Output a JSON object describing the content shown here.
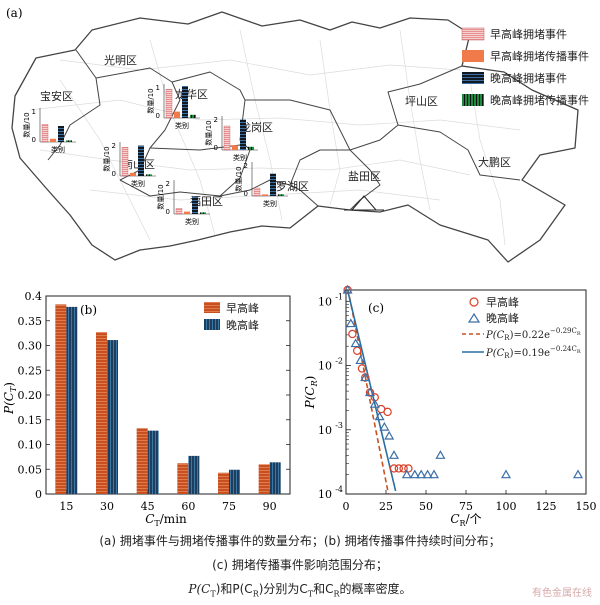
{
  "map": {
    "panel_label": "(a)",
    "districts": [
      "光明区",
      "宝安区",
      "龙华区",
      "龙岗区",
      "南山区",
      "福田区",
      "罗湖区",
      "盐田区",
      "坪山区",
      "大鹏区"
    ],
    "legend": [
      "早高峰拥堵事件",
      "早高峰拥堵传播事件",
      "晚高峰拥堵事件",
      "晚高峰拥堵传播事件"
    ],
    "inset_ylabel": "数量/10",
    "inset_xlabel": "类别",
    "insets": [
      {
        "district": "宝安区",
        "ymax": "1",
        "values": [
          0.55,
          0.1,
          0.5,
          0.05
        ]
      },
      {
        "district": "龙华区",
        "ymax": "1",
        "values": [
          0.9,
          0.2,
          1.0,
          0.1
        ]
      },
      {
        "district": "龙岗区",
        "ymax": "2",
        "values": [
          1.5,
          0.3,
          1.9,
          0.2
        ]
      },
      {
        "district": "南山区",
        "ymax": "2",
        "values": [
          1.8,
          0.2,
          1.9,
          0.1
        ]
      },
      {
        "district": "福田区",
        "ymax": "2",
        "values": [
          0.35,
          0.15,
          1.1,
          0.1
        ]
      },
      {
        "district": "罗湖区",
        "ymax": "2",
        "values": [
          0.5,
          0.1,
          1.4,
          0.1
        ]
      }
    ]
  },
  "chart_data": [
    {
      "type": "bar",
      "panel_label": "(b)",
      "categories": [
        "15",
        "30",
        "45",
        "60",
        "75",
        "90"
      ],
      "series": [
        {
          "name": "早高峰",
          "color": "#c8501e",
          "values": [
            0.383,
            0.327,
            0.133,
            0.062,
            0.043,
            0.06
          ]
        },
        {
          "name": "晚高峰",
          "color": "#1f3d5c",
          "values": [
            0.378,
            0.311,
            0.128,
            0.077,
            0.049,
            0.064
          ]
        }
      ],
      "xlabel_sym": "C",
      "xlabel_sub": "T",
      "xlabel_unit": "/min",
      "ylabel_sym": "P(C",
      "ylabel_sub": "T",
      "ylabel_end": ")",
      "ylim": [
        0,
        0.4
      ],
      "yticks": [
        "0",
        "0.05",
        "0.10",
        "0.15",
        "0.20",
        "0.25",
        "0.30",
        "0.35",
        "0.4"
      ]
    },
    {
      "type": "scatter",
      "panel_label": "(c)",
      "yscale": "log",
      "xlim": [
        0,
        150
      ],
      "ylim": [
        0.0001,
        0.15
      ],
      "xticks": [
        "0",
        "25",
        "50",
        "75",
        "100",
        "125",
        "150"
      ],
      "ytick_labels": [
        {
          "base": "10",
          "exp": "-1"
        },
        {
          "base": "10",
          "exp": "-2"
        },
        {
          "base": "10",
          "exp": "-3"
        },
        {
          "base": "10",
          "exp": "-4"
        }
      ],
      "xlabel_sym": "C",
      "xlabel_sub": "R",
      "xlabel_unit": "/个",
      "ylabel_sym": "P(C",
      "ylabel_sub": "R",
      "ylabel_end": ")",
      "series": [
        {
          "name": "早高峰",
          "marker": "circle",
          "color": "#d9402a",
          "x": [
            1,
            4,
            7,
            10,
            12,
            15,
            18,
            22,
            26,
            30,
            33,
            36,
            39
          ],
          "y": [
            0.15,
            0.031,
            0.017,
            0.009,
            0.0065,
            0.0038,
            0.0032,
            0.0021,
            0.0019,
            0.00025,
            0.00025,
            0.00025,
            0.00025
          ]
        },
        {
          "name": "晚高峰",
          "marker": "triangle",
          "color": "#3a6fa8",
          "x": [
            1,
            3,
            6,
            9,
            12,
            15,
            18,
            21,
            24,
            27,
            30,
            38,
            43,
            47,
            51,
            55,
            59,
            100,
            145
          ],
          "y": [
            0.15,
            0.045,
            0.022,
            0.012,
            0.0065,
            0.0038,
            0.0025,
            0.0016,
            0.0011,
            0.0008,
            0.0004,
            0.0002,
            0.0002,
            0.0002,
            0.0002,
            0.0002,
            0.0004,
            0.0002,
            0.0002
          ]
        }
      ],
      "fits": [
        {
          "label_lhs": "P(C",
          "label_sub": "R",
          "label_rhs": ")=0.22e",
          "exp": "−0.29C",
          "exp_sub": "R",
          "a": 0.22,
          "b": 0.29,
          "color": "#c8501e",
          "dash": true
        },
        {
          "label_lhs": "P(C",
          "label_sub": "R",
          "label_rhs": ")=0.19e",
          "exp": "−0.24C",
          "exp_sub": "R",
          "a": 0.19,
          "b": 0.24,
          "color": "#2a6fa0",
          "dash": false
        }
      ]
    }
  ],
  "caption": {
    "line1": "(a) 拥堵事件与拥堵传播事件的数量分布；(b) 拥堵传播事件持续时间分布；",
    "line2": "(c) 拥堵传播事件影响范围分布；",
    "line3_parts": [
      "P(C",
      "T",
      ")和P(C",
      "R",
      ")分别为C",
      "T",
      "和C",
      "R",
      "的概率密度。"
    ]
  },
  "watermark": "有色金属在线",
  "colors": {
    "morning_event": "#f2b8b8",
    "morning_prop": "#f07a4a",
    "evening_event": "#1a2a40",
    "evening_prop": "#2aa050",
    "map_fill": "#ffffff",
    "map_line": "#444444",
    "road": "#d8d8d8"
  }
}
